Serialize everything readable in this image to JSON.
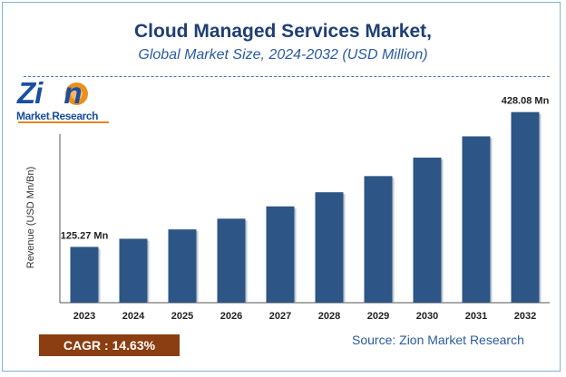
{
  "header": {
    "title": "Cloud Managed Services Market,",
    "subtitle": "Global Market Size, 2024-2032 (USD Million)"
  },
  "logo": {
    "word_a": "Zi",
    "word_b": "n",
    "sub_a": "Market",
    "sub_dot": ".",
    "sub_b": "Research"
  },
  "footer": {
    "cagr_label": "CAGR :  14.63%",
    "source_label": "Source: Zion Market Research"
  },
  "colors": {
    "bar": "#2d5585",
    "title": "#1f3f74",
    "accent": "#8b3e12"
  },
  "chart_data": {
    "type": "bar",
    "title": "Cloud Managed Services Market,",
    "subtitle": "Global Market Size, 2024-2032 (USD Million)",
    "xlabel": "",
    "ylabel": "Revenue (USD Mn/Bn)",
    "categories": [
      "2023",
      "2024",
      "2025",
      "2026",
      "2027",
      "2028",
      "2029",
      "2030",
      "2031",
      "2032"
    ],
    "values": [
      125.27,
      143.6,
      164.6,
      188.7,
      216.3,
      248.0,
      284.3,
      325.9,
      373.6,
      428.08
    ],
    "data_labels": [
      {
        "index": 0,
        "text": "125.27 Mn"
      },
      {
        "index": 9,
        "text": "428.08 Mn"
      }
    ],
    "ylim": [
      0,
      460
    ],
    "grid": false,
    "legend": "none"
  }
}
